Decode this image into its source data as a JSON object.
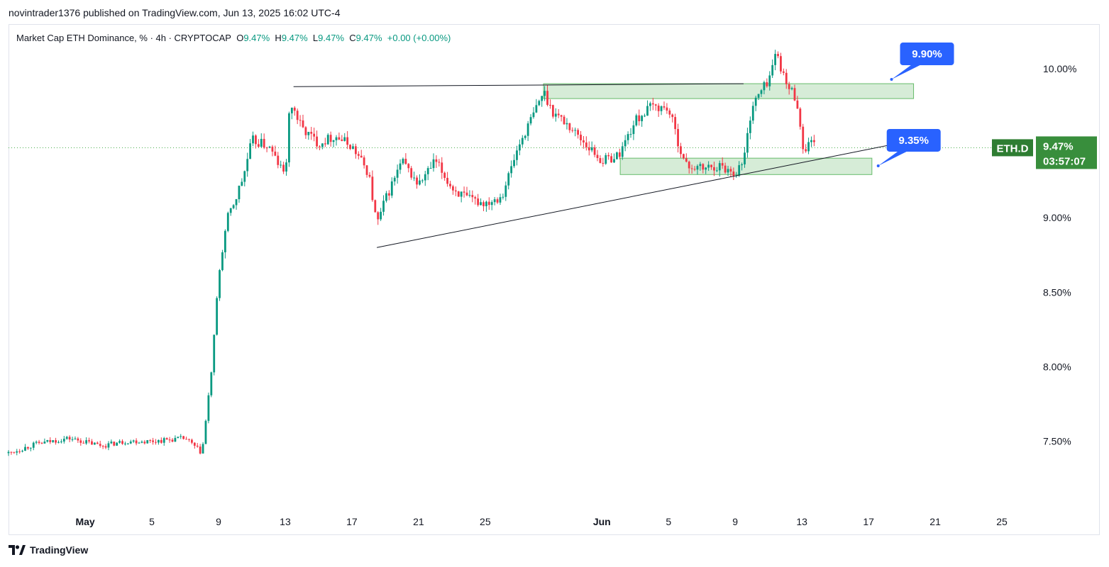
{
  "publisher_line": "novintrader1376 published on TradingView.com, Jun 13, 2025 16:02 UTC-4",
  "legend": {
    "symbol": "Market Cap ETH Dominance, % · 4h · CRYPTOCAP",
    "o_label": "O",
    "o_value": "9.47%",
    "h_label": "H",
    "h_value": "9.47%",
    "l_label": "L",
    "l_value": "9.47%",
    "c_label": "C",
    "c_value": "9.47%",
    "change": "+0.00 (+0.00%)"
  },
  "footer": {
    "brand": "TradingView"
  },
  "colors": {
    "up": "#089981",
    "down": "#f23645",
    "accent": "#2962ff",
    "zone": "#c8e6c9",
    "price_tag": "#388e3c"
  },
  "chart_data": {
    "type": "candlestick",
    "ylim": [
      7.06,
      10.3
    ],
    "y_ticks": [
      "7.50%",
      "8.00%",
      "8.50%",
      "9.00%",
      "10.00%"
    ],
    "y_tick_values": [
      7.5,
      8.0,
      8.5,
      9.0,
      10.0
    ],
    "x_ticks": [
      "May",
      "5",
      "9",
      "13",
      "17",
      "21",
      "25",
      "Jun",
      "5",
      "9",
      "13",
      "17",
      "21",
      "25"
    ],
    "x_tick_days": [
      1,
      5,
      9,
      13,
      17,
      21,
      25,
      32,
      36,
      40,
      44,
      48,
      52,
      56
    ],
    "x_day_range": [
      -3.6,
      57.7
    ],
    "last_price": {
      "symbol": "ETH.D",
      "value": "9.47%",
      "countdown": "03:57:07",
      "level": 9.47
    },
    "annotations": [
      {
        "text": "9.90%",
        "day": 50.4,
        "level": 10.1
      },
      {
        "text": "9.35%",
        "day": 49.6,
        "level": 9.52
      }
    ],
    "zones": [
      {
        "from_day": 28.5,
        "to_day": 50.7,
        "low": 9.8,
        "high": 9.9
      },
      {
        "from_day": 33.1,
        "to_day": 48.2,
        "low": 9.29,
        "high": 9.4
      }
    ],
    "trendlines": [
      {
        "from_day": 13.5,
        "from": 9.88,
        "to_day": 40.5,
        "to": 9.9
      },
      {
        "from_day": 18.5,
        "from": 8.8,
        "to_day": 49.8,
        "to": 9.5
      }
    ],
    "path_days": [
      -3.6,
      -2,
      0,
      2,
      3.5,
      5,
      7,
      8,
      8.2,
      8.6,
      9,
      9.5,
      10,
      10.5,
      11,
      12,
      13,
      13.3,
      14,
      15,
      16,
      17,
      18,
      18.5,
      19,
      20,
      21,
      22,
      23,
      24,
      25,
      26,
      27,
      28,
      28.5,
      29,
      30,
      31,
      32,
      33,
      34,
      35,
      36,
      37,
      38,
      39,
      40,
      40.5,
      41,
      42,
      42.5,
      43,
      43.4,
      43.8,
      44,
      44.5,
      44.8
    ],
    "path_values": [
      7.42,
      7.48,
      7.52,
      7.47,
      7.5,
      7.5,
      7.52,
      7.42,
      7.6,
      8.0,
      8.6,
      8.98,
      9.12,
      9.28,
      9.52,
      9.48,
      9.28,
      9.78,
      9.6,
      9.5,
      9.55,
      9.48,
      9.3,
      8.95,
      9.12,
      9.38,
      9.22,
      9.38,
      9.2,
      9.12,
      9.1,
      9.15,
      9.48,
      9.72,
      9.85,
      9.72,
      9.62,
      9.5,
      9.38,
      9.42,
      9.65,
      9.75,
      9.73,
      9.35,
      9.33,
      9.35,
      9.3,
      9.38,
      9.75,
      9.93,
      10.12,
      9.9,
      9.85,
      9.75,
      9.45,
      9.5,
      9.47
    ]
  }
}
